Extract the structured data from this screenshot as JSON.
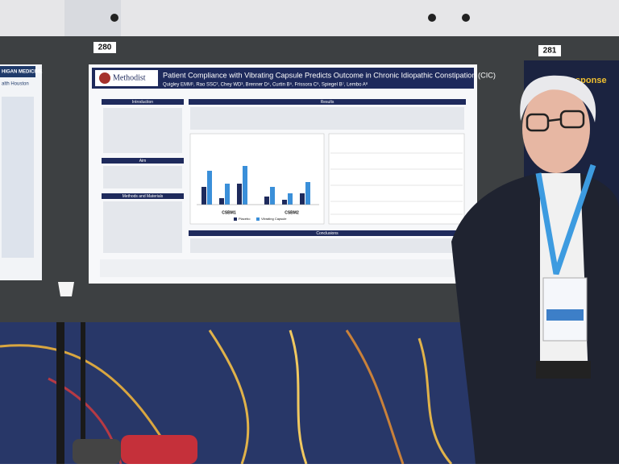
{
  "boards": {
    "left": "280",
    "right": "281"
  },
  "poster": {
    "institution": "Methodist",
    "title": "Patient Compliance with Vibrating Capsule Predicts Outcome in Chronic Idiopathic Constipation (CIC)",
    "authors": "Quigley EMM¹, Rao SSC², Chey WD³, Brenner D⁴, Curtin B⁵, Frissora C⁶, Spiegel B⁷, Lembo A⁸",
    "sections": {
      "introduction": "Introduction",
      "aim": "Aim",
      "methods": "Methods and Materials",
      "results": "Results",
      "conclusions": "Conclusions"
    },
    "figure": {
      "groups": [
        "CSBM1",
        "CSBM2"
      ],
      "legend": [
        "Placebo",
        "Vibrating Capsule"
      ]
    }
  },
  "neighbor_posters": {
    "left": [
      "HIGAN MEDICINE",
      "alth Houston"
    ],
    "right": "Response"
  }
}
